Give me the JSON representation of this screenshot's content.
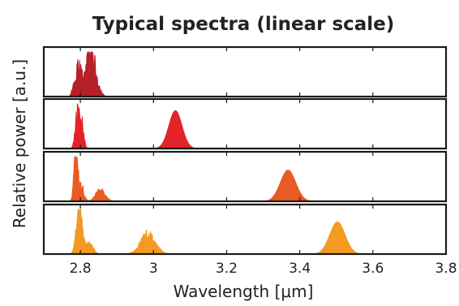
{
  "chart_data": {
    "type": "area",
    "title": "Typical spectra (linear scale)",
    "xlabel": "Wavelength [μm]",
    "ylabel": "Relative power [a.u.]",
    "xlim": [
      2.7,
      3.8
    ],
    "xticks": [
      2.8,
      3.0,
      3.2,
      3.4,
      3.6,
      3.8
    ],
    "xtick_labels": [
      "2.8",
      "3",
      "3.2",
      "3.4",
      "3.6",
      "3.8"
    ],
    "ylim": [
      0,
      1
    ],
    "grid": false,
    "legend": "none",
    "layout": "four stacked panels sharing the x axis",
    "series": [
      {
        "color": "#b5202a",
        "components": [
          {
            "center": 2.828,
            "width": 0.014,
            "amplitude": 1.0,
            "noise": 0.35
          },
          {
            "center": 2.795,
            "width": 0.007,
            "amplitude": 0.65,
            "noise": 0.35
          },
          {
            "center": 2.78,
            "width": 0.004,
            "amplitude": 0.2,
            "noise": 0.3
          }
        ]
      },
      {
        "color": "#e3232a",
        "components": [
          {
            "center": 2.792,
            "width": 0.006,
            "amplitude": 0.95,
            "noise": 0.35
          },
          {
            "center": 2.805,
            "width": 0.005,
            "amplitude": 0.5,
            "noise": 0.35
          },
          {
            "center": 3.06,
            "width": 0.018,
            "amplitude": 0.85,
            "noise": 0.0
          }
        ]
      },
      {
        "color": "#ea5a24",
        "components": [
          {
            "center": 2.787,
            "width": 0.005,
            "amplitude": 1.0,
            "noise": 0.3
          },
          {
            "center": 2.8,
            "width": 0.008,
            "amplitude": 0.4,
            "noise": 0.4
          },
          {
            "center": 2.855,
            "width": 0.013,
            "amplitude": 0.25,
            "noise": 0.25
          },
          {
            "center": 3.368,
            "width": 0.021,
            "amplitude": 0.7,
            "noise": 0.0
          }
        ]
      },
      {
        "color": "#f39a22",
        "components": [
          {
            "center": 2.797,
            "width": 0.008,
            "amplitude": 1.0,
            "noise": 0.3
          },
          {
            "center": 2.825,
            "width": 0.01,
            "amplitude": 0.25,
            "noise": 0.3
          },
          {
            "center": 2.985,
            "width": 0.02,
            "amplitude": 0.45,
            "noise": 0.25
          },
          {
            "center": 3.503,
            "width": 0.021,
            "amplitude": 0.72,
            "noise": 0.0
          }
        ]
      }
    ]
  }
}
